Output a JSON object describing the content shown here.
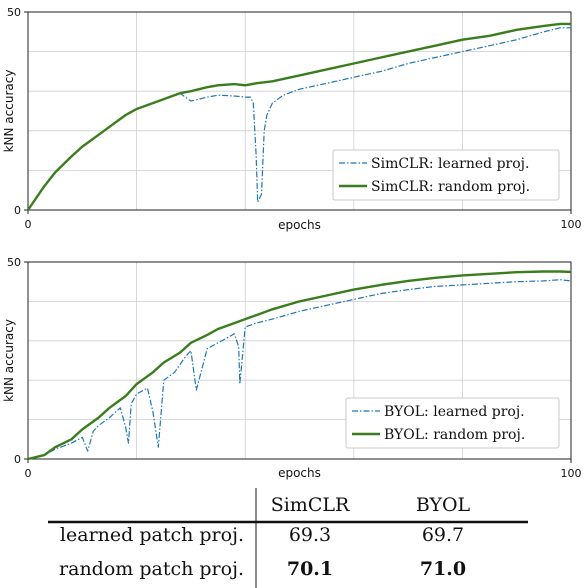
{
  "chart_data": [
    {
      "type": "line",
      "xlabel": "epochs",
      "ylabel": "kNN accuracy",
      "xlim": [
        0,
        100
      ],
      "ylim": [
        0,
        50
      ],
      "x_ticks": [
        "0",
        "100"
      ],
      "y_ticks": [
        "0",
        "50"
      ],
      "grid": true,
      "legend_position": "bottom-right",
      "series": [
        {
          "name": "SimCLR: learned proj.",
          "color": "#1f77b4",
          "style": "dashdot",
          "x": [
            0,
            3,
            5,
            8,
            10,
            13,
            15,
            18,
            20,
            23,
            25,
            28,
            30,
            33,
            35,
            38,
            40,
            41,
            41.5,
            42,
            42.3,
            43,
            43.5,
            44,
            45,
            47,
            50,
            55,
            60,
            65,
            70,
            75,
            80,
            85,
            90,
            95,
            98,
            100
          ],
          "y": [
            0,
            6,
            9.5,
            13.5,
            16,
            19,
            21,
            24,
            25.5,
            27,
            28,
            29.5,
            27.5,
            28.5,
            29,
            28.8,
            28.5,
            28.5,
            27,
            14,
            2,
            4,
            20,
            24,
            27,
            29,
            30.5,
            32,
            33.5,
            35,
            37,
            38.5,
            40,
            41.5,
            43,
            45,
            46,
            46
          ]
        },
        {
          "name": "SimCLR: random proj.",
          "color": "#3a7d1e",
          "style": "solid",
          "x": [
            0,
            3,
            5,
            8,
            10,
            13,
            15,
            18,
            20,
            23,
            25,
            28,
            30,
            33,
            35,
            38,
            40,
            42,
            45,
            50,
            55,
            60,
            65,
            70,
            75,
            80,
            85,
            90,
            95,
            98,
            100
          ],
          "y": [
            0,
            6,
            9.5,
            13.5,
            16,
            19,
            21,
            24,
            25.5,
            27,
            28,
            29.5,
            30,
            31,
            31.5,
            31.8,
            31.5,
            32,
            32.5,
            34,
            35.5,
            37,
            38.5,
            40,
            41.5,
            43,
            44,
            45.5,
            46.5,
            47,
            47
          ]
        }
      ]
    },
    {
      "type": "line",
      "xlabel": "epochs",
      "ylabel": "kNN accuracy",
      "xlim": [
        0,
        100
      ],
      "ylim": [
        0,
        50
      ],
      "x_ticks": [
        "0",
        "100"
      ],
      "y_ticks": [
        "0",
        "50"
      ],
      "grid": true,
      "legend_position": "bottom-right",
      "series": [
        {
          "name": "BYOL: learned proj.",
          "color": "#1f77b4",
          "style": "dashdot",
          "x": [
            0,
            3,
            5,
            8,
            10,
            11,
            12,
            13,
            15,
            17,
            18,
            18.5,
            19,
            20,
            22,
            23,
            24,
            25,
            27,
            28,
            29,
            30,
            31,
            33,
            35,
            37,
            38,
            38.8,
            39,
            40,
            42,
            45,
            50,
            55,
            60,
            65,
            70,
            75,
            80,
            85,
            90,
            95,
            98,
            100
          ],
          "y": [
            0,
            1,
            2.5,
            4,
            5.5,
            2,
            7,
            8.5,
            10.5,
            13,
            8,
            4,
            14,
            16.5,
            18,
            12,
            3,
            20,
            22,
            24,
            26,
            27.5,
            17.5,
            28,
            29.5,
            31,
            31.8,
            28.5,
            19,
            33.5,
            34.5,
            35.5,
            37.5,
            39,
            40.5,
            42,
            43,
            43.8,
            44.2,
            44.6,
            45,
            45.2,
            45.5,
            45.2
          ]
        },
        {
          "name": "BYOL: random proj.",
          "color": "#3a7d1e",
          "style": "solid",
          "x": [
            0,
            3,
            5,
            8,
            10,
            13,
            15,
            18,
            20,
            23,
            25,
            28,
            30,
            33,
            35,
            38,
            40,
            42,
            45,
            50,
            55,
            60,
            65,
            70,
            75,
            80,
            85,
            90,
            95,
            98,
            100
          ],
          "y": [
            0,
            1,
            3,
            5,
            7.5,
            10.5,
            13,
            16,
            19,
            22,
            24.5,
            27,
            29.5,
            31.5,
            33,
            34.5,
            35.5,
            36.5,
            38,
            40,
            41.5,
            43,
            44.2,
            45.2,
            46,
            46.6,
            47,
            47.4,
            47.6,
            47.6,
            47.5
          ]
        }
      ]
    },
    {
      "type": "table",
      "columns": [
        "",
        "SimCLR",
        "BYOL"
      ],
      "rows": [
        {
          "label": "learned patch proj.",
          "values": [
            "69.3",
            "69.7"
          ],
          "bold": false
        },
        {
          "label": "random patch proj.",
          "values": [
            "70.1",
            "71.0"
          ],
          "bold": true
        }
      ]
    }
  ]
}
